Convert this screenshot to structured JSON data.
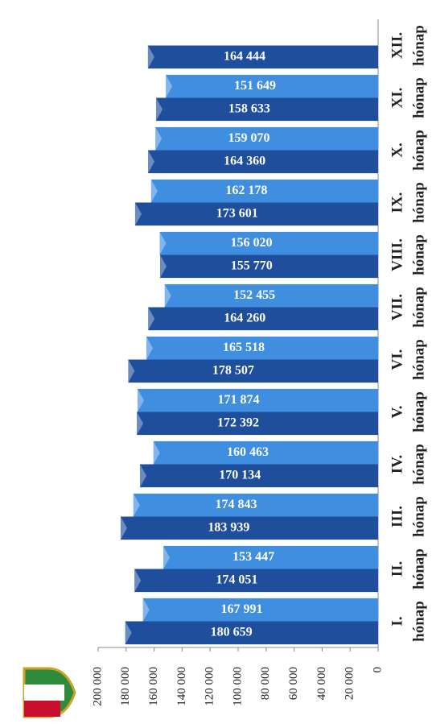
{
  "chart_data": {
    "type": "bar",
    "categories": [
      "I.",
      "II.",
      "III.",
      "IV.",
      "V.",
      "VI.",
      "VII.",
      "VIII.",
      "IX.",
      "X.",
      "XI.",
      "XII."
    ],
    "category_suffix": "hónap",
    "series": [
      {
        "color": "#1f4f9c",
        "values": [
          180659,
          174051,
          183939,
          170134,
          172392,
          178507,
          164260,
          155770,
          173601,
          164360,
          158633,
          164444
        ],
        "value_labels": [
          "180 659",
          "174 051",
          "183 939",
          "170 134",
          "172 392",
          "178 507",
          "164 260",
          "155 770",
          "173 601",
          "164 360",
          "158 633",
          "164 444"
        ]
      },
      {
        "color": "#3f8ee0",
        "values": [
          167991,
          153447,
          174843,
          160463,
          171874,
          165518,
          152455,
          156020,
          162178,
          159070,
          151649,
          null
        ],
        "value_labels": [
          "167 991",
          "153 447",
          "174 843",
          "160 463",
          "171 874",
          "165 518",
          "152 455",
          "156 020",
          "162 178",
          "159 070",
          "151 649",
          null
        ]
      }
    ],
    "ylim": [
      0,
      200000
    ],
    "yticks": [
      {
        "value": 0,
        "label": "0"
      },
      {
        "value": 20000,
        "label": "20 000"
      },
      {
        "value": 40000,
        "label": "40 000"
      },
      {
        "value": 60000,
        "label": "60 000"
      },
      {
        "value": 80000,
        "label": "80 000"
      },
      {
        "value": 100000,
        "label": "100 000"
      },
      {
        "value": 120000,
        "label": "120 000"
      },
      {
        "value": 140000,
        "label": "140 000"
      },
      {
        "value": 160000,
        "label": "160 000"
      },
      {
        "value": 180000,
        "label": "180 000"
      },
      {
        "value": 200000,
        "label": "200 000"
      }
    ]
  }
}
